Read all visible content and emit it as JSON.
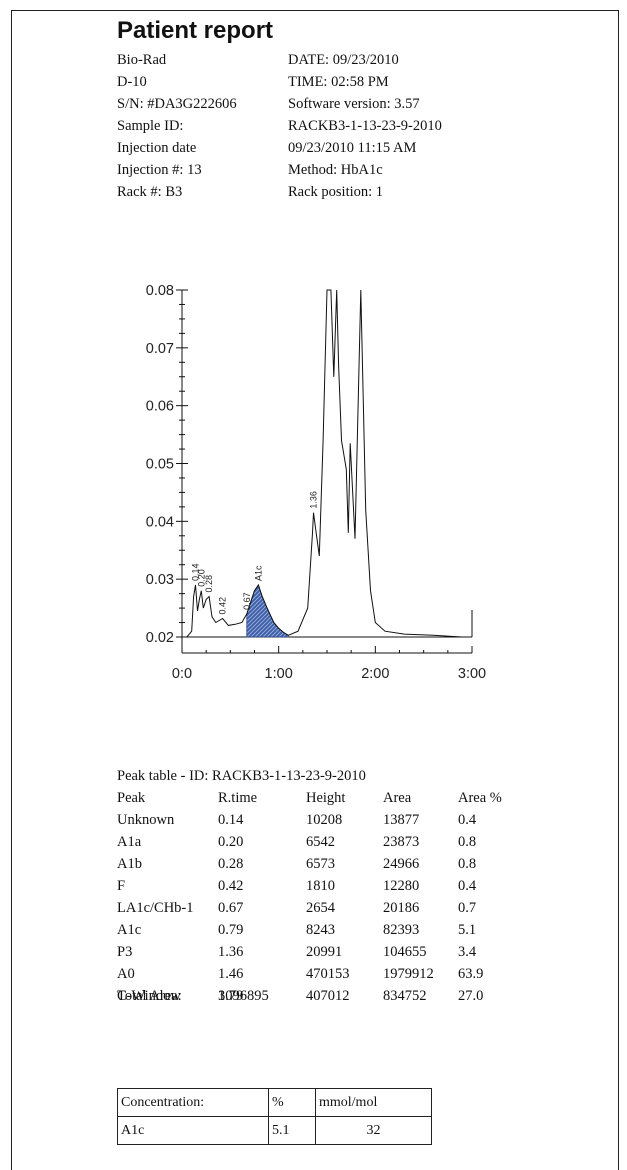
{
  "report": {
    "title": "Patient report",
    "header_left": [
      "Bio-Rad",
      "D-10",
      "S/N: #DA3G222606",
      "Sample ID:",
      "Injection date",
      "Injection #: 13",
      "Rack #: B3"
    ],
    "header_right": [
      "DATE: 09/23/2010",
      "TIME:  02:58 PM",
      "Software version: 3.57",
      "RACKB3-1-13-23-9-2010",
      "09/23/2010 11:15 AM",
      "Method: HbA1c",
      "Rack position: 1"
    ]
  },
  "chart_data": {
    "type": "line",
    "title": "",
    "xlabel": "",
    "ylabel": "",
    "xlim": [
      0,
      3
    ],
    "ylim": [
      0.02,
      0.08
    ],
    "x_ticks": [
      {
        "value": 0,
        "label": "0:0"
      },
      {
        "value": 1,
        "label": "1:00"
      },
      {
        "value": 2,
        "label": "2:00"
      },
      {
        "value": 3,
        "label": "3:00"
      }
    ],
    "y_ticks": [
      {
        "value": 0.02,
        "label": "0.02"
      },
      {
        "value": 0.03,
        "label": "0.03"
      },
      {
        "value": 0.04,
        "label": "0.04"
      },
      {
        "value": 0.05,
        "label": "0.05"
      },
      {
        "value": 0.06,
        "label": "0.06"
      },
      {
        "value": 0.07,
        "label": "0.07"
      },
      {
        "value": 0.08,
        "label": "0.08"
      }
    ],
    "series": [
      {
        "x": [
          0,
          0.05,
          0.1,
          0.12,
          0.14,
          0.16,
          0.18,
          0.2,
          0.22,
          0.25,
          0.28,
          0.31,
          0.35,
          0.42,
          0.48,
          0.55,
          0.62,
          0.67,
          0.71,
          0.75,
          0.79,
          0.83,
          0.88,
          0.95,
          1.0,
          1.05,
          1.1,
          1.2,
          1.3,
          1.35,
          1.36,
          1.38,
          1.42,
          1.46,
          1.5,
          1.54,
          1.57,
          1.6,
          1.62,
          1.65,
          1.7,
          1.72,
          1.74,
          1.79,
          1.85,
          1.9,
          1.95,
          2.0,
          2.1,
          2.3,
          2.6,
          2.9
        ],
        "y": [
          0.02,
          0.02,
          0.021,
          0.027,
          0.029,
          0.0245,
          0.0265,
          0.028,
          0.025,
          0.0265,
          0.027,
          0.0235,
          0.0225,
          0.0232,
          0.022,
          0.0222,
          0.0225,
          0.024,
          0.026,
          0.028,
          0.029,
          0.027,
          0.025,
          0.0225,
          0.0215,
          0.0208,
          0.0203,
          0.021,
          0.025,
          0.038,
          0.0415,
          0.039,
          0.034,
          0.054,
          0.09,
          0.085,
          0.065,
          0.09,
          0.067,
          0.054,
          0.049,
          0.038,
          0.0535,
          0.037,
          0.09,
          0.042,
          0.028,
          0.0225,
          0.021,
          0.0205,
          0.0203,
          0.02
        ]
      }
    ],
    "peak_labels": [
      {
        "x": 0.14,
        "y": 0.029,
        "text": "0.14"
      },
      {
        "x": 0.2,
        "y": 0.028,
        "text": "0.20"
      },
      {
        "x": 0.28,
        "y": 0.027,
        "text": "0.28"
      },
      {
        "x": 0.42,
        "y": 0.0232,
        "text": "0.42"
      },
      {
        "x": 0.67,
        "y": 0.024,
        "text": "0.67"
      },
      {
        "x": 0.79,
        "y": 0.029,
        "text": "A1c"
      },
      {
        "x": 1.36,
        "y": 0.0415,
        "text": "1.36"
      }
    ],
    "shaded_peak": "A1c",
    "grid": false
  },
  "peak_table": {
    "caption": "Peak table  -  ID: RACKB3-1-13-23-9-2010",
    "headers": [
      "Peak",
      "R.time",
      "Height",
      "Area",
      "Area %"
    ],
    "rows": [
      [
        "Unknown",
        "0.14",
        "10208",
        "13877",
        "0.4"
      ],
      [
        "A1a",
        "0.20",
        "6542",
        "23873",
        "0.8"
      ],
      [
        "A1b",
        "0.28",
        "6573",
        "24966",
        "0.8"
      ],
      [
        "F",
        "0.42",
        "1810",
        "12280",
        "0.4"
      ],
      [
        "LA1c/CHb-1",
        "0.67",
        "2654",
        "20186",
        "0.7"
      ],
      [
        "A1c",
        "0.79",
        "8243",
        "82393",
        "5.1"
      ],
      [
        "P3",
        "1.36",
        "20991",
        "104655",
        "3.4"
      ],
      [
        "A0",
        "1.46",
        "470153",
        "1979912",
        "63.9"
      ],
      [
        "C-Window",
        "1.79",
        "407012",
        "834752",
        "27.0"
      ]
    ],
    "total_label": "Total Area:",
    "total_value": "3096895"
  },
  "concentration": {
    "header": [
      "Concentration:",
      "%",
      "mmol/mol"
    ],
    "row": [
      "A1c",
      "5.1",
      "32"
    ]
  }
}
